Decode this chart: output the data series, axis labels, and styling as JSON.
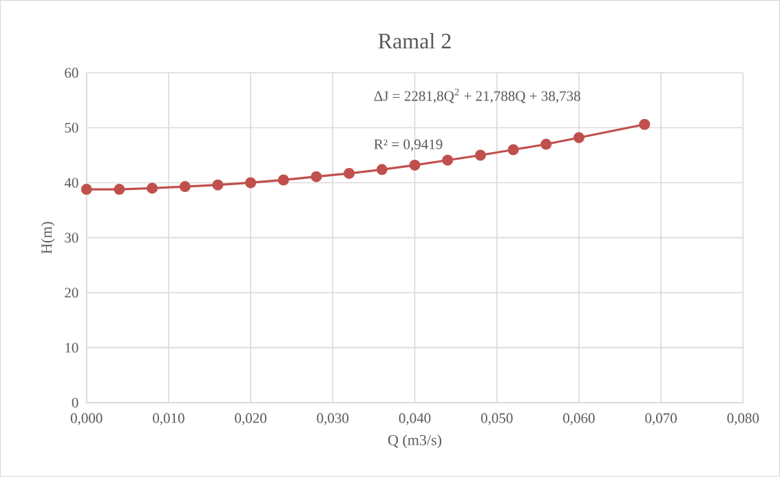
{
  "chart_data": {
    "type": "line",
    "title": "Ramal 2",
    "xlabel": "Q (m3/s)",
    "ylabel": "H(m)",
    "x": [
      0,
      0.004,
      0.008,
      0.012,
      0.016,
      0.02,
      0.024,
      0.028,
      0.032,
      0.036,
      0.04,
      0.044,
      0.048,
      0.052,
      0.056,
      0.06,
      0.068
    ],
    "series": [
      {
        "color": "#c0504d",
        "values": [
          38.8,
          38.8,
          39.0,
          39.3,
          39.6,
          40.0,
          40.5,
          41.1,
          41.7,
          42.4,
          43.2,
          44.1,
          45.0,
          46.0,
          47.0,
          48.2,
          50.6
        ]
      }
    ],
    "xlim": [
      0,
      0.08
    ],
    "ylim": [
      0,
      60
    ],
    "xticks": [
      {
        "value": 0,
        "label": "0,000"
      },
      {
        "value": 0.01,
        "label": "0,010"
      },
      {
        "value": 0.02,
        "label": "0,020"
      },
      {
        "value": 0.03,
        "label": "0,030"
      },
      {
        "value": 0.04,
        "label": "0,040"
      },
      {
        "value": 0.05,
        "label": "0,050"
      },
      {
        "value": 0.06,
        "label": "0,060"
      },
      {
        "value": 0.07,
        "label": "0,070"
      },
      {
        "value": 0.08,
        "label": "0,080"
      }
    ],
    "yticks": [
      0,
      10,
      20,
      30,
      40,
      50,
      60
    ],
    "annotations": [
      "ΔJ = 2281,8Q$^{2}$ + 21,788Q + 38,738",
      "R² = 0,9419"
    ],
    "grid": true,
    "marker": "circle",
    "line_style": "solid",
    "legend": false
  }
}
